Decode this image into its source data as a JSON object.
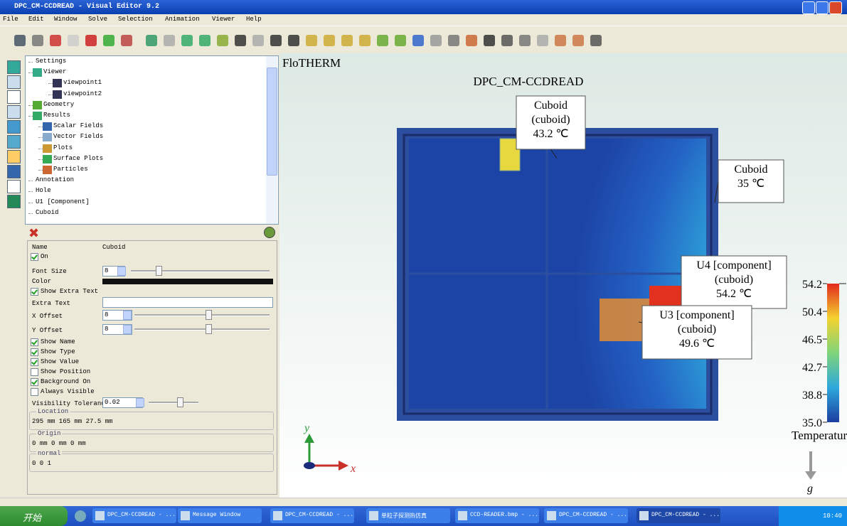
{
  "window": {
    "title": "DPC_CM-CCDREAD - Visual Editor 9.2"
  },
  "menu": [
    "File",
    "Edit",
    "Window",
    "Solve",
    "Selection",
    "Animation",
    "Viewer",
    "Help"
  ],
  "tree": [
    "Settings",
    "Viewer",
    "viewpoint1",
    "viewpoint2",
    "Geometry",
    "Results",
    "Scalar Fields",
    "Vector Fields",
    "Plots",
    "Surface Plots",
    "Particles",
    "Annotation",
    "Hole",
    "U1 [Component]",
    "Cuboid"
  ],
  "properties": {
    "name_label": "Name",
    "name_value": "Cuboid",
    "on": "On",
    "font_size": "Font Size",
    "font_size_value": "8",
    "color": "Color",
    "show_extra_text": "Show Extra Text",
    "extra_text": "Extra Text",
    "x_offset": "X Offset",
    "x_offset_value": "8",
    "y_offset": "Y Offset",
    "y_offset_value": "8",
    "checkboxes": [
      {
        "label": "Show Name",
        "checked": true
      },
      {
        "label": "Show Type",
        "checked": true
      },
      {
        "label": "Show Value",
        "checked": true
      },
      {
        "label": "Show Position",
        "checked": false
      },
      {
        "label": "Background On",
        "checked": true
      },
      {
        "label": "Always Visible",
        "checked": false
      }
    ],
    "visibility_tolerance": "Visibility Tolerance",
    "visibility_tolerance_value": "0.02",
    "location": "Location",
    "location_value": "295 mm 165 mm 27.5 mm",
    "origin": "Origin",
    "origin_value": "0 mm 0 mm 0 mm",
    "normal": "normal",
    "normal_value": "0 0 1"
  },
  "viewport": {
    "brand": "FloTHERM",
    "title": "DPC_CM-CCDREAD",
    "labels": [
      [
        "Cuboid",
        "(cuboid)",
        "43.2 ℃"
      ],
      [
        "Cuboid",
        "35 ℃"
      ],
      [
        "U4 [component]",
        "(cuboid)",
        "54.2 ℃"
      ],
      [
        "U3 [component]",
        "(cuboid)",
        "49.6 ℃"
      ]
    ],
    "colorbar_ticks": [
      "54.2",
      "50.4",
      "46.5",
      "42.7",
      "38.8",
      "35.0"
    ],
    "colorbar_title": "Temperature/℃",
    "axis_y": "y",
    "axis_x": "x",
    "gravity": "g"
  },
  "taskbar": {
    "start": "开始",
    "items": [
      "DPC_CM-CCDREAD - ...",
      "Message Window",
      "DPC_CM-CCDREAD - ...",
      "单粒子探测热仿真",
      "CCD-READER.bmp - ...",
      "DPC_CM-CCDREAD - ...",
      "DPC_CM-CCDREAD - ..."
    ],
    "clock": "10:40"
  }
}
